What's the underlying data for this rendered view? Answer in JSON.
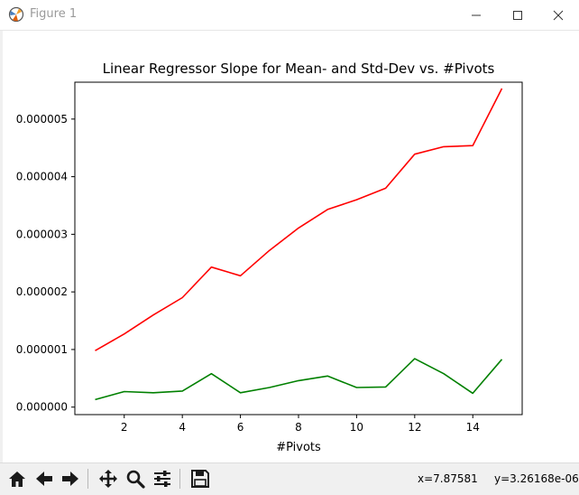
{
  "window": {
    "title": "Figure 1"
  },
  "toolbar": {
    "buttons": [
      {
        "id": "home",
        "icon": "home-icon"
      },
      {
        "id": "back",
        "icon": "arrow-left-icon"
      },
      {
        "id": "forward",
        "icon": "arrow-right-icon"
      },
      {
        "id": "pan",
        "icon": "move-icon"
      },
      {
        "id": "zoom",
        "icon": "magnifier-icon"
      },
      {
        "id": "configure",
        "icon": "sliders-icon"
      },
      {
        "id": "save",
        "icon": "floppy-icon"
      }
    ],
    "x_readout": "x=7.87581",
    "y_readout": "y=3.26168e-06"
  },
  "chart_data": {
    "type": "line",
    "title": "Linear Regressor Slope for Mean- and Std-Dev vs. #Pivots",
    "xlabel": "#Pivots",
    "ylabel": "",
    "x": [
      1,
      2,
      3,
      4,
      5,
      6,
      7,
      8,
      9,
      10,
      11,
      12,
      13,
      14,
      15
    ],
    "xlim": [
      0.3,
      15.7
    ],
    "ylim": [
      -1.3e-07,
      5.64e-06
    ],
    "xticks": [
      2,
      4,
      6,
      8,
      10,
      12,
      14
    ],
    "yticks": [
      0.0,
      1e-06,
      2e-06,
      3e-06,
      4e-06,
      5e-06
    ],
    "ytick_labels": [
      "0.000000",
      "0.000001",
      "0.000002",
      "0.000003",
      "0.000004",
      "0.000005"
    ],
    "grid": false,
    "series": [
      {
        "color": "#ff0000",
        "values": [
          9.8e-07,
          1.27e-06,
          1.6e-06,
          1.9e-06,
          2.43e-06,
          2.28e-06,
          2.72e-06,
          3.11e-06,
          3.43e-06,
          3.6e-06,
          3.8e-06,
          4.39e-06,
          4.52e-06,
          4.54e-06,
          5.53e-06
        ]
      },
      {
        "color": "#008000",
        "values": [
          1.3e-07,
          2.7e-07,
          2.5e-07,
          2.8e-07,
          5.8e-07,
          2.5e-07,
          3.4e-07,
          4.6e-07,
          5.4e-07,
          3.4e-07,
          3.5e-07,
          8.4e-07,
          5.8e-07,
          2.4e-07,
          8.3e-07
        ]
      }
    ]
  }
}
